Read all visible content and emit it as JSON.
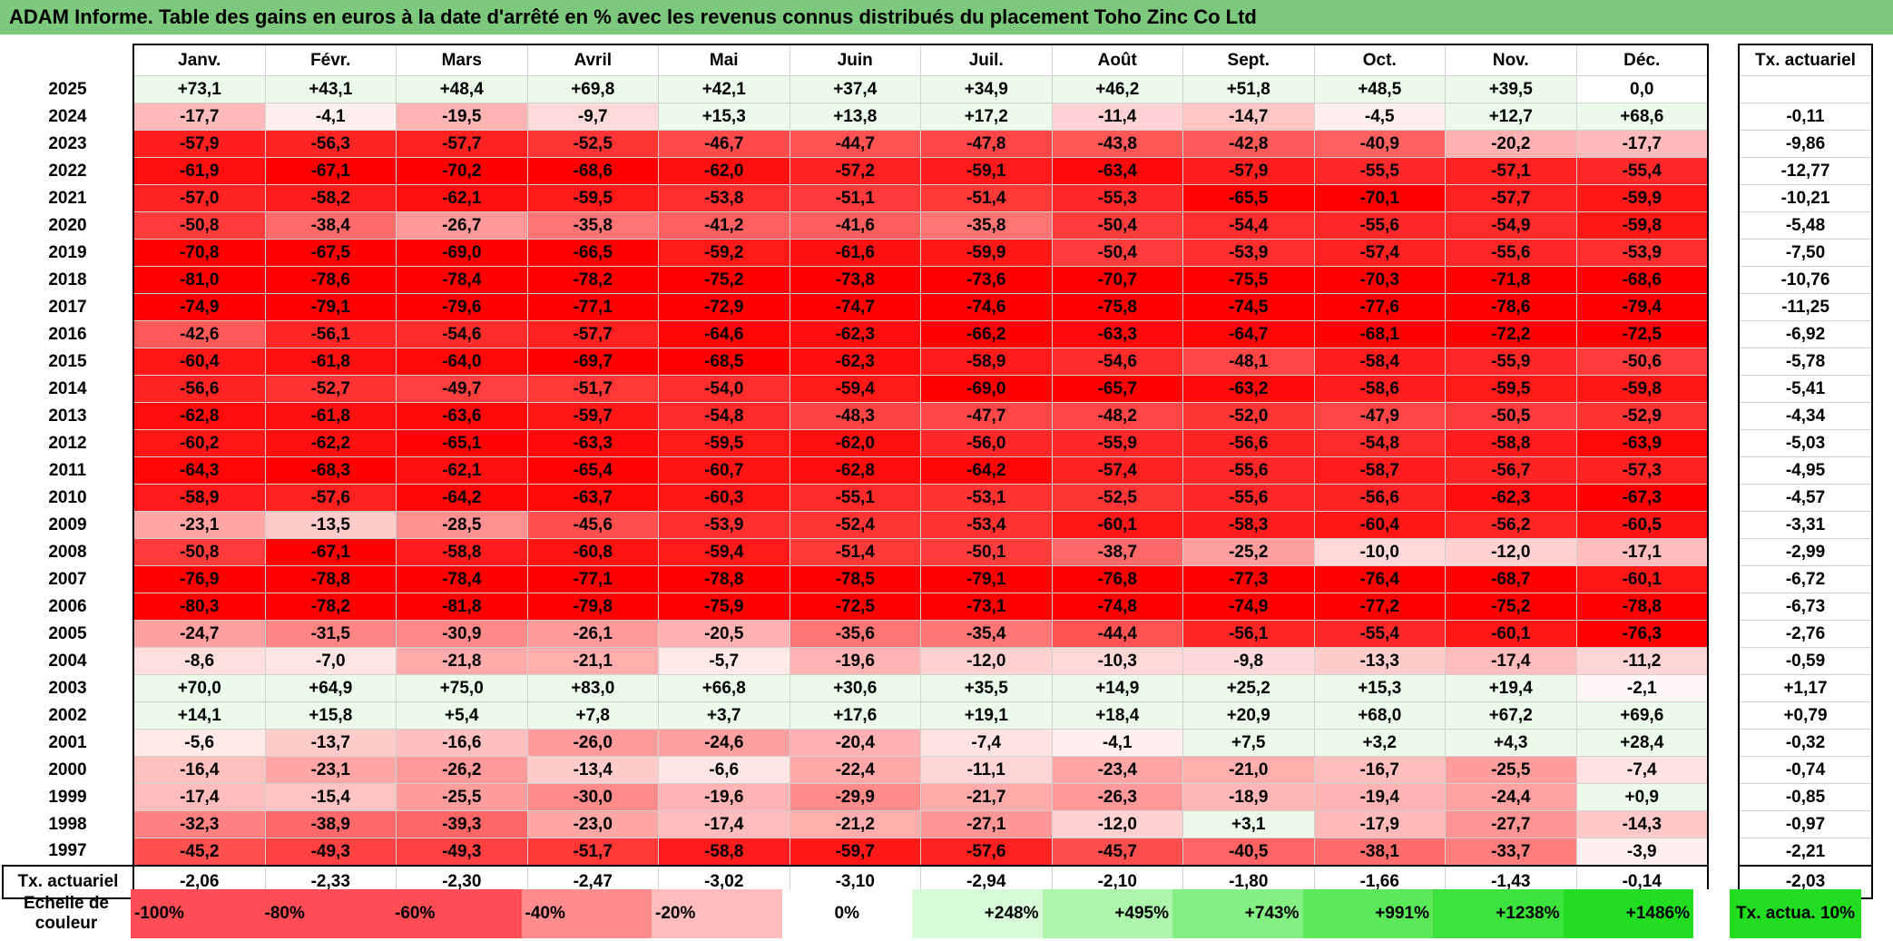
{
  "title": "ADAM Informe. Table des gains en euros à la date d'arrêté en % avec les revenus connus distribués du placement Toho Zinc Co Ltd",
  "months": [
    "Janv.",
    "Févr.",
    "Mars",
    "Avril",
    "Mai",
    "Juin",
    "Juil.",
    "Août",
    "Sept.",
    "Oct.",
    "Nov.",
    "Déc."
  ],
  "rate_header": "Tx. actuariel",
  "rows": [
    {
      "year": "2025",
      "values": [
        "+73,1",
        "+43,1",
        "+48,4",
        "+69,8",
        "+42,1",
        "+37,4",
        "+34,9",
        "+46,2",
        "+51,8",
        "+48,5",
        "+39,5",
        "0,0"
      ],
      "rate": ""
    },
    {
      "year": "2024",
      "values": [
        "-17,7",
        "-4,1",
        "-19,5",
        "-9,7",
        "+15,3",
        "+13,8",
        "+17,2",
        "-11,4",
        "-14,7",
        "-4,5",
        "+12,7",
        "+68,6"
      ],
      "rate": "-0,11"
    },
    {
      "year": "2023",
      "values": [
        "-57,9",
        "-56,3",
        "-57,7",
        "-52,5",
        "-46,7",
        "-44,7",
        "-47,8",
        "-43,8",
        "-42,8",
        "-40,9",
        "-20,2",
        "-17,7"
      ],
      "rate": "-9,86"
    },
    {
      "year": "2022",
      "values": [
        "-61,9",
        "-67,1",
        "-70,2",
        "-68,6",
        "-62,0",
        "-57,2",
        "-59,1",
        "-63,4",
        "-57,9",
        "-55,5",
        "-57,1",
        "-55,4"
      ],
      "rate": "-12,77"
    },
    {
      "year": "2021",
      "values": [
        "-57,0",
        "-58,2",
        "-62,1",
        "-59,5",
        "-53,8",
        "-51,1",
        "-51,4",
        "-55,3",
        "-65,5",
        "-70,1",
        "-57,7",
        "-59,9"
      ],
      "rate": "-10,21"
    },
    {
      "year": "2020",
      "values": [
        "-50,8",
        "-38,4",
        "-26,7",
        "-35,8",
        "-41,2",
        "-41,6",
        "-35,8",
        "-50,4",
        "-54,4",
        "-55,6",
        "-54,9",
        "-59,8"
      ],
      "rate": "-5,48"
    },
    {
      "year": "2019",
      "values": [
        "-70,8",
        "-67,5",
        "-69,0",
        "-66,5",
        "-59,2",
        "-61,6",
        "-59,9",
        "-50,4",
        "-53,9",
        "-57,4",
        "-55,6",
        "-53,9"
      ],
      "rate": "-7,50"
    },
    {
      "year": "2018",
      "values": [
        "-81,0",
        "-78,6",
        "-78,4",
        "-78,2",
        "-75,2",
        "-73,8",
        "-73,6",
        "-70,7",
        "-75,5",
        "-70,3",
        "-71,8",
        "-68,6"
      ],
      "rate": "-10,76"
    },
    {
      "year": "2017",
      "values": [
        "-74,9",
        "-79,1",
        "-79,6",
        "-77,1",
        "-72,9",
        "-74,7",
        "-74,6",
        "-75,8",
        "-74,5",
        "-77,6",
        "-78,6",
        "-79,4"
      ],
      "rate": "-11,25"
    },
    {
      "year": "2016",
      "values": [
        "-42,6",
        "-56,1",
        "-54,6",
        "-57,7",
        "-64,6",
        "-62,3",
        "-66,2",
        "-63,3",
        "-64,7",
        "-68,1",
        "-72,2",
        "-72,5"
      ],
      "rate": "-6,92"
    },
    {
      "year": "2015",
      "values": [
        "-60,4",
        "-61,8",
        "-64,0",
        "-69,7",
        "-68,5",
        "-62,3",
        "-58,9",
        "-54,6",
        "-48,1",
        "-58,4",
        "-55,9",
        "-50,6"
      ],
      "rate": "-5,78"
    },
    {
      "year": "2014",
      "values": [
        "-56,6",
        "-52,7",
        "-49,7",
        "-51,7",
        "-54,0",
        "-59,4",
        "-69,0",
        "-65,7",
        "-63,2",
        "-58,6",
        "-59,5",
        "-59,8"
      ],
      "rate": "-5,41"
    },
    {
      "year": "2013",
      "values": [
        "-62,8",
        "-61,8",
        "-63,6",
        "-59,7",
        "-54,8",
        "-48,3",
        "-47,7",
        "-48,2",
        "-52,0",
        "-47,9",
        "-50,5",
        "-52,9"
      ],
      "rate": "-4,34"
    },
    {
      "year": "2012",
      "values": [
        "-60,2",
        "-62,2",
        "-65,1",
        "-63,3",
        "-59,5",
        "-62,0",
        "-56,0",
        "-55,9",
        "-56,6",
        "-54,8",
        "-58,8",
        "-63,9"
      ],
      "rate": "-5,03"
    },
    {
      "year": "2011",
      "values": [
        "-64,3",
        "-68,3",
        "-62,1",
        "-65,4",
        "-60,7",
        "-62,8",
        "-64,2",
        "-57,4",
        "-55,6",
        "-58,7",
        "-56,7",
        "-57,3"
      ],
      "rate": "-4,95"
    },
    {
      "year": "2010",
      "values": [
        "-58,9",
        "-57,6",
        "-64,2",
        "-63,7",
        "-60,3",
        "-55,1",
        "-53,1",
        "-52,5",
        "-55,6",
        "-56,6",
        "-62,3",
        "-67,3"
      ],
      "rate": "-4,57"
    },
    {
      "year": "2009",
      "values": [
        "-23,1",
        "-13,5",
        "-28,5",
        "-45,6",
        "-53,9",
        "-52,4",
        "-53,4",
        "-60,1",
        "-58,3",
        "-60,4",
        "-56,2",
        "-60,5"
      ],
      "rate": "-3,31"
    },
    {
      "year": "2008",
      "values": [
        "-50,8",
        "-67,1",
        "-58,8",
        "-60,8",
        "-59,4",
        "-51,4",
        "-50,1",
        "-38,7",
        "-25,2",
        "-10,0",
        "-12,0",
        "-17,1"
      ],
      "rate": "-2,99"
    },
    {
      "year": "2007",
      "values": [
        "-76,9",
        "-78,8",
        "-78,4",
        "-77,1",
        "-78,8",
        "-78,5",
        "-79,1",
        "-76,8",
        "-77,3",
        "-76,4",
        "-68,7",
        "-60,1"
      ],
      "rate": "-6,72"
    },
    {
      "year": "2006",
      "values": [
        "-80,3",
        "-78,2",
        "-81,8",
        "-79,8",
        "-75,9",
        "-72,5",
        "-73,1",
        "-74,8",
        "-74,9",
        "-77,2",
        "-75,2",
        "-78,8"
      ],
      "rate": "-6,73"
    },
    {
      "year": "2005",
      "values": [
        "-24,7",
        "-31,5",
        "-30,9",
        "-26,1",
        "-20,5",
        "-35,6",
        "-35,4",
        "-44,4",
        "-56,1",
        "-55,4",
        "-60,1",
        "-76,3"
      ],
      "rate": "-2,76"
    },
    {
      "year": "2004",
      "values": [
        "-8,6",
        "-7,0",
        "-21,8",
        "-21,1",
        "-5,7",
        "-19,6",
        "-12,0",
        "-10,3",
        "-9,8",
        "-13,3",
        "-17,4",
        "-11,2"
      ],
      "rate": "-0,59"
    },
    {
      "year": "2003",
      "values": [
        "+70,0",
        "+64,9",
        "+75,0",
        "+83,0",
        "+66,8",
        "+30,6",
        "+35,5",
        "+14,9",
        "+25,2",
        "+15,3",
        "+19,4",
        "-2,1"
      ],
      "rate": "+1,17"
    },
    {
      "year": "2002",
      "values": [
        "+14,1",
        "+15,8",
        "+5,4",
        "+7,8",
        "+3,7",
        "+17,6",
        "+19,1",
        "+18,4",
        "+20,9",
        "+68,0",
        "+67,2",
        "+69,6"
      ],
      "rate": "+0,79"
    },
    {
      "year": "2001",
      "values": [
        "-5,6",
        "-13,7",
        "-16,6",
        "-26,0",
        "-24,6",
        "-20,4",
        "-7,4",
        "-4,1",
        "+7,5",
        "+3,2",
        "+4,3",
        "+28,4"
      ],
      "rate": "-0,32"
    },
    {
      "year": "2000",
      "values": [
        "-16,4",
        "-23,1",
        "-26,2",
        "-13,4",
        "-6,6",
        "-22,4",
        "-11,1",
        "-23,4",
        "-21,0",
        "-16,7",
        "-25,5",
        "-7,4"
      ],
      "rate": "-0,74"
    },
    {
      "year": "1999",
      "values": [
        "-17,4",
        "-15,4",
        "-25,5",
        "-30,0",
        "-19,6",
        "-29,9",
        "-21,7",
        "-26,3",
        "-18,9",
        "-19,4",
        "-24,4",
        "+0,9"
      ],
      "rate": "-0,85"
    },
    {
      "year": "1998",
      "values": [
        "-32,3",
        "-38,9",
        "-39,3",
        "-23,0",
        "-17,4",
        "-21,2",
        "-27,1",
        "-12,0",
        "+3,1",
        "-17,9",
        "-27,7",
        "-14,3"
      ],
      "rate": "-0,97"
    },
    {
      "year": "1997",
      "values": [
        "-45,2",
        "-49,3",
        "-49,3",
        "-51,7",
        "-58,8",
        "-59,7",
        "-57,6",
        "-45,7",
        "-40,5",
        "-38,1",
        "-33,7",
        "-3,9"
      ],
      "rate": "-2,21"
    }
  ],
  "totals": {
    "label": "Tx. actuariel",
    "values": [
      "-2,06",
      "-2,33",
      "-2,30",
      "-2,47",
      "-3,02",
      "-3,10",
      "-2,94",
      "-2,10",
      "-1,80",
      "-1,66",
      "-1,43",
      "-0,14"
    ],
    "rate": "-2,03"
  },
  "scale": {
    "label": "Echelle de couleur",
    "swatches": [
      {
        "label": "-100%",
        "color": "#ff4d55"
      },
      {
        "label": "-80%",
        "color": "#ff4d55"
      },
      {
        "label": "-60%",
        "color": "#ff4d55"
      },
      {
        "label": "-40%",
        "color": "#ff8c8c"
      },
      {
        "label": "-20%",
        "color": "#ffbcbc"
      },
      {
        "label": "0%",
        "color": "#ffffff"
      },
      {
        "label": "+248%",
        "color": "#d6fbd6"
      },
      {
        "label": "+495%",
        "color": "#adf5ad"
      },
      {
        "label": "+743%",
        "color": "#84f084"
      },
      {
        "label": "+991%",
        "color": "#5be85b"
      },
      {
        "label": "+1238%",
        "color": "#3ee23e"
      },
      {
        "label": "+1486%",
        "color": "#22dd22"
      }
    ],
    "rate_label": "Tx. actua. 10%",
    "rate_color": "#22dd22"
  },
  "colors": {
    "title_bar": "#7cc87c",
    "negative_max": "#ff0000",
    "positive_tint": "#ecfaec"
  }
}
